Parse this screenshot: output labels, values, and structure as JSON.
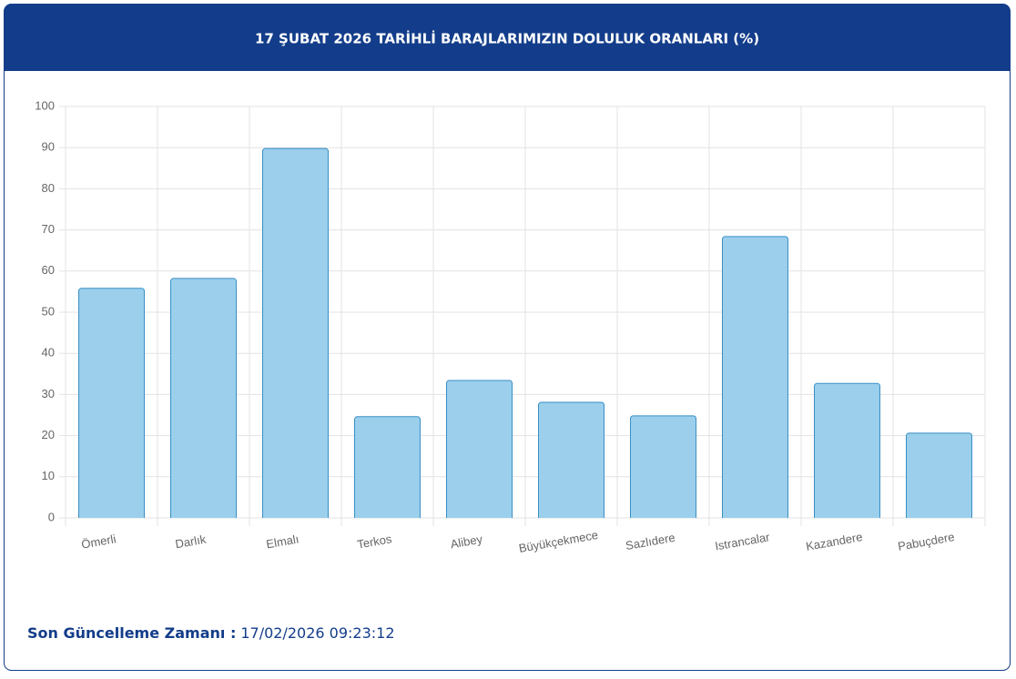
{
  "chart_data": {
    "type": "bar",
    "title": "17 ŞUBAT 2026 TARİHLİ BARAJLARIMIZIN DOLULUK ORANLARI (%)",
    "categories": [
      "Ömerli",
      "Darlık",
      "Elmalı",
      "Terkos",
      "Alibey",
      "Büyükçekmece",
      "Sazlıdere",
      "Istrancalar",
      "Kazandere",
      "Pabuçdere"
    ],
    "values": [
      55.8,
      58.2,
      89.8,
      24.6,
      33.4,
      28.1,
      24.8,
      68.4,
      32.7,
      20.6
    ],
    "color": "#9bcfec",
    "ylim": [
      0,
      100
    ],
    "yticks": [
      0,
      10,
      20,
      30,
      40,
      50,
      60,
      70,
      80,
      90,
      100
    ],
    "grid": true,
    "footer_label": "Son Güncelleme Zamanı :",
    "footer_value": "17/02/2026 09:23:12"
  }
}
